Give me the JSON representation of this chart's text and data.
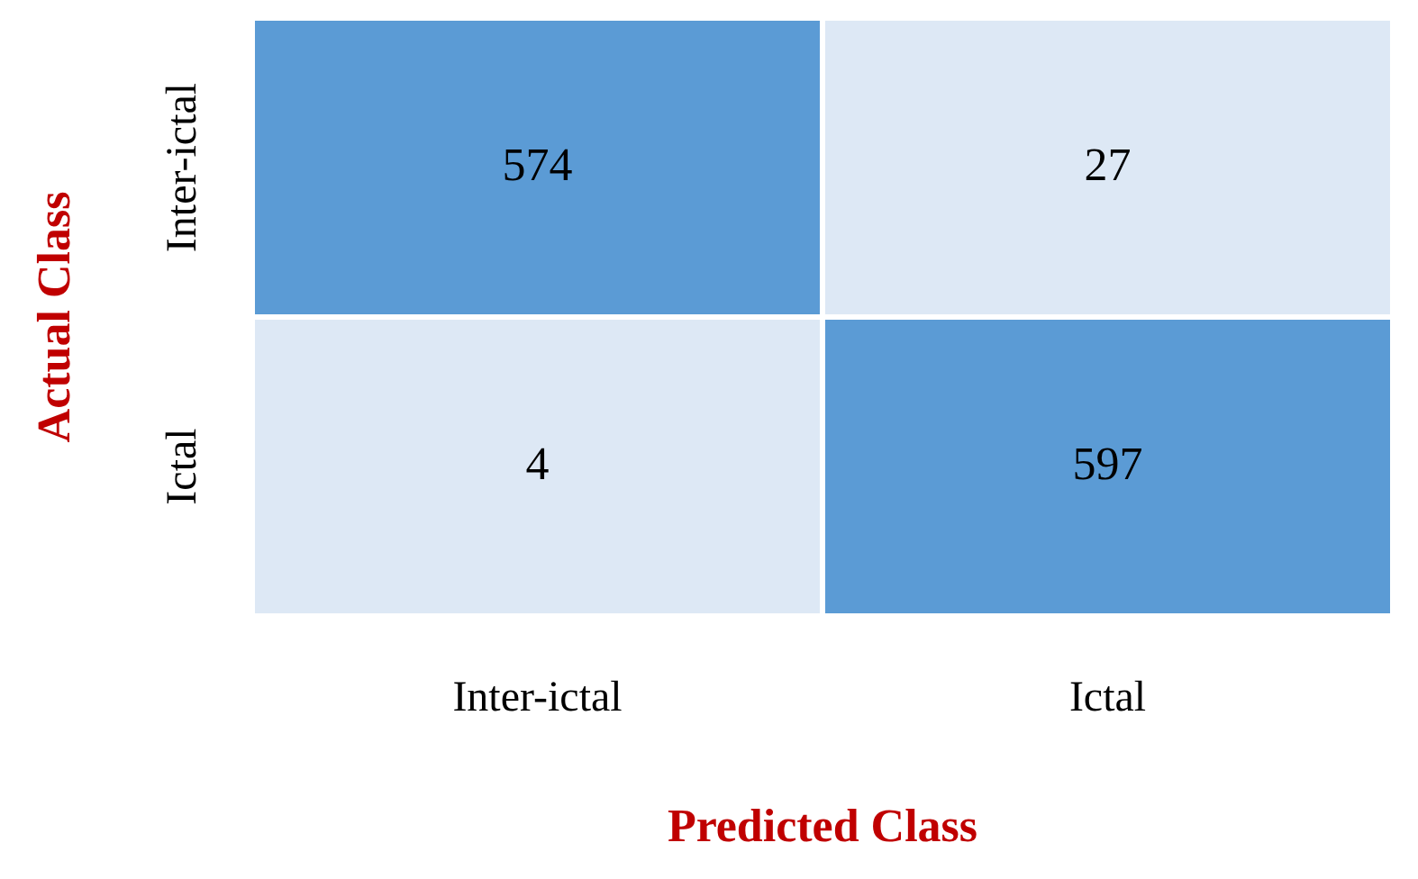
{
  "chart_data": {
    "type": "heatmap",
    "xlabel": "Predicted Class",
    "ylabel": "Actual Class",
    "categories": [
      "Inter-ictal",
      "Ictal"
    ],
    "y_categories": [
      "Inter-ictal",
      "Ictal"
    ],
    "data_labels": true,
    "cells": [
      [
        574,
        27
      ],
      [
        4,
        597
      ]
    ],
    "colors": [
      [
        "#5b9bd5",
        "#dde8f5"
      ],
      [
        "#dde8f5",
        "#5b9bd5"
      ]
    ]
  }
}
